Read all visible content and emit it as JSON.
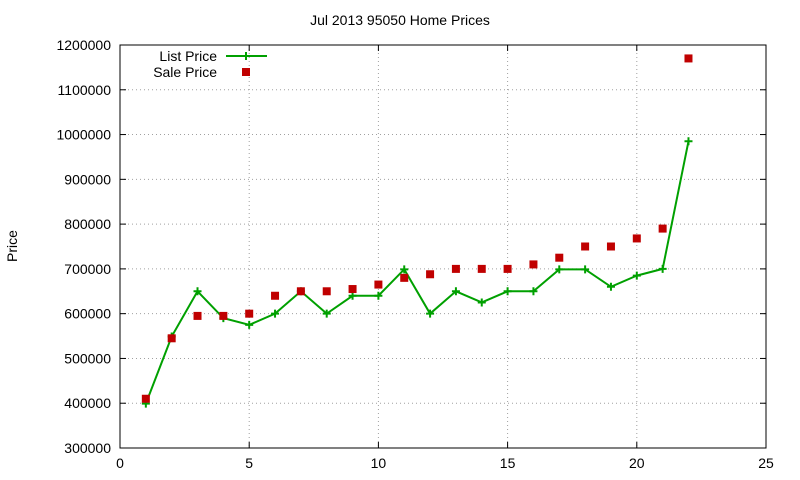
{
  "chart_data": {
    "type": "line",
    "title": "Jul 2013 95050 Home Prices",
    "xlabel": "",
    "ylabel": "Price",
    "xlim": [
      0,
      25
    ],
    "ylim": [
      300000,
      1200000
    ],
    "x_ticks": [
      0,
      5,
      10,
      15,
      20,
      25
    ],
    "y_ticks": [
      300000,
      400000,
      500000,
      600000,
      700000,
      800000,
      900000,
      1000000,
      1100000,
      1200000
    ],
    "grid": true,
    "legend_position": "top-left",
    "series": [
      {
        "name": "List Price",
        "style": "line-with-plus-markers",
        "color": "#00a000",
        "x": [
          1,
          2,
          3,
          4,
          5,
          6,
          7,
          8,
          9,
          10,
          11,
          12,
          13,
          14,
          15,
          16,
          17,
          18,
          19,
          20,
          21,
          22
        ],
        "y": [
          399000,
          549000,
          650000,
          590000,
          575000,
          600000,
          650000,
          600000,
          640000,
          640000,
          699000,
          600000,
          650000,
          625000,
          650000,
          650000,
          699000,
          699000,
          660000,
          685000,
          700000,
          985000
        ]
      },
      {
        "name": "Sale Price",
        "style": "square-markers",
        "color": "#c00000",
        "x": [
          1,
          2,
          3,
          4,
          5,
          6,
          7,
          8,
          9,
          10,
          11,
          12,
          13,
          14,
          15,
          16,
          17,
          18,
          19,
          20,
          21,
          22
        ],
        "y": [
          410000,
          545000,
          595000,
          595000,
          600000,
          640000,
          650000,
          650000,
          655000,
          665000,
          680000,
          688000,
          700000,
          700000,
          700000,
          710000,
          725000,
          750000,
          750000,
          768000,
          790000,
          1170000
        ]
      }
    ]
  }
}
